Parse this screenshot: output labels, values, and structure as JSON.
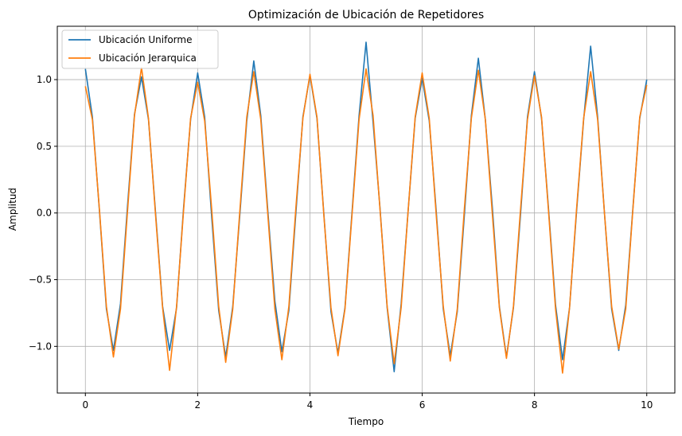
{
  "chart_data": {
    "type": "line",
    "title": "Optimización de Ubicación de Repetidores",
    "xlabel": "Tiempo",
    "ylabel": "Amplitud",
    "xlim": [
      -0.5,
      10.5
    ],
    "ylim": [
      -1.35,
      1.4
    ],
    "xticks": [
      0,
      2,
      4,
      6,
      8,
      10
    ],
    "xtick_labels": [
      "0",
      "2",
      "4",
      "6",
      "8",
      "10"
    ],
    "yticks": [
      -1.0,
      -0.5,
      0.0,
      0.5,
      1.0
    ],
    "ytick_labels": [
      "−1.0",
      "−0.5",
      "0.0",
      "0.5",
      "1.0"
    ],
    "grid": true,
    "legend_position": "top-left",
    "colors": {
      "series_1": "#1f77b4",
      "series_2": "#ff7f0e"
    },
    "series": [
      {
        "name": "Ubicación Uniforme",
        "x": [
          0.0,
          0.125,
          0.25,
          0.375,
          0.5,
          0.625,
          0.75,
          0.875,
          1.0,
          1.125,
          1.25,
          1.375,
          1.5,
          1.625,
          1.75,
          1.875,
          2.0,
          2.125,
          2.25,
          2.375,
          2.5,
          2.625,
          2.75,
          2.875,
          3.0,
          3.125,
          3.25,
          3.375,
          3.5,
          3.625,
          3.75,
          3.875,
          4.0,
          4.125,
          4.25,
          4.375,
          4.5,
          4.625,
          4.75,
          4.875,
          5.0,
          5.125,
          5.25,
          5.375,
          5.5,
          5.625,
          5.75,
          5.875,
          6.0,
          6.125,
          6.25,
          6.375,
          6.5,
          6.625,
          6.75,
          6.875,
          7.0,
          7.125,
          7.25,
          7.375,
          7.5,
          7.625,
          7.75,
          7.875,
          8.0,
          8.125,
          8.25,
          8.375,
          8.5,
          8.625,
          8.75,
          8.875,
          9.0,
          9.125,
          9.25,
          9.375,
          9.5,
          9.625,
          9.75,
          9.875,
          10.0
        ],
        "y": [
          1.08,
          0.72,
          0.02,
          -0.72,
          -1.03,
          -0.68,
          0.05,
          0.74,
          1.02,
          0.7,
          0.0,
          -0.7,
          -1.03,
          -0.71,
          0.04,
          0.7,
          1.05,
          0.72,
          -0.03,
          -0.73,
          -1.08,
          -0.7,
          -0.02,
          0.69,
          1.14,
          0.73,
          0.02,
          -0.66,
          -1.04,
          -0.73,
          0.0,
          0.72,
          1.03,
          0.71,
          -0.02,
          -0.74,
          -1.05,
          -0.71,
          0.01,
          0.73,
          1.28,
          0.68,
          0.03,
          -0.71,
          -1.19,
          -0.68,
          0.02,
          0.71,
          1.01,
          0.69,
          0.01,
          -0.72,
          -1.07,
          -0.74,
          -0.02,
          0.73,
          1.16,
          0.7,
          0.04,
          -0.7,
          -1.08,
          -0.71,
          -0.02,
          0.72,
          1.06,
          0.71,
          0.03,
          -0.69,
          -1.1,
          -0.71,
          0.01,
          0.7,
          1.25,
          0.72,
          -0.02,
          -0.72,
          -1.03,
          -0.69,
          0.02,
          0.71,
          1.0
        ]
      },
      {
        "name": "Ubicación Jerarquica",
        "x": [
          0.0,
          0.125,
          0.25,
          0.375,
          0.5,
          0.625,
          0.75,
          0.875,
          1.0,
          1.125,
          1.25,
          1.375,
          1.5,
          1.625,
          1.75,
          1.875,
          2.0,
          2.125,
          2.25,
          2.375,
          2.5,
          2.625,
          2.75,
          2.875,
          3.0,
          3.125,
          3.25,
          3.375,
          3.5,
          3.625,
          3.75,
          3.875,
          4.0,
          4.125,
          4.25,
          4.375,
          4.5,
          4.625,
          4.75,
          4.875,
          5.0,
          5.125,
          5.25,
          5.375,
          5.5,
          5.625,
          5.75,
          5.875,
          6.0,
          6.125,
          6.25,
          6.375,
          6.5,
          6.625,
          6.75,
          6.875,
          7.0,
          7.125,
          7.25,
          7.375,
          7.5,
          7.625,
          7.75,
          7.875,
          8.0,
          8.125,
          8.25,
          8.375,
          8.5,
          8.625,
          8.75,
          8.875,
          9.0,
          9.125,
          9.25,
          9.375,
          9.5,
          9.625,
          9.75,
          9.875,
          10.0
        ],
        "y": [
          0.95,
          0.7,
          0.03,
          -0.7,
          -1.08,
          -0.72,
          0.01,
          0.73,
          1.09,
          0.71,
          -0.02,
          -0.71,
          -1.18,
          -0.7,
          0.02,
          0.71,
          0.98,
          0.69,
          0.03,
          -0.7,
          -1.12,
          -0.72,
          0.01,
          0.72,
          1.06,
          0.7,
          -0.01,
          -0.72,
          -1.1,
          -0.7,
          0.04,
          0.71,
          1.04,
          0.72,
          -0.03,
          -0.71,
          -1.07,
          -0.72,
          -0.01,
          0.7,
          1.08,
          0.73,
          0.02,
          -0.7,
          -1.13,
          -0.71,
          0.02,
          0.72,
          1.05,
          0.71,
          -0.02,
          -0.7,
          -1.11,
          -0.72,
          0.03,
          0.71,
          1.07,
          0.7,
          -0.01,
          -0.71,
          -1.09,
          -0.7,
          0.02,
          0.7,
          1.03,
          0.72,
          0.01,
          -0.72,
          -1.2,
          -0.71,
          0.03,
          0.71,
          1.06,
          0.7,
          -0.02,
          -0.7,
          -1.02,
          -0.72,
          0.01,
          0.72,
          0.96
        ]
      }
    ]
  }
}
